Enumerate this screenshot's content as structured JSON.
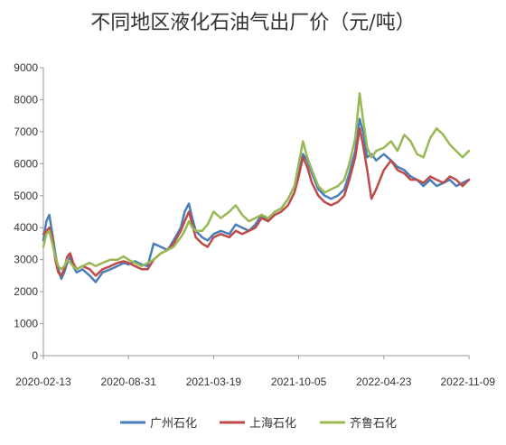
{
  "chart_data": {
    "type": "line",
    "title": "不同地区液化石油气出厂价（元/吨）",
    "xlabel": "",
    "ylabel": "",
    "x_range": [
      "2020-02-13",
      "2022-11-09"
    ],
    "x_ticks": [
      "2020-02-13",
      "2020-08-31",
      "2021-03-19",
      "2021-10-05",
      "2022-04-23",
      "2022-11-09"
    ],
    "ylim": [
      0,
      9000
    ],
    "y_ticks": [
      0,
      1000,
      2000,
      3000,
      4000,
      5000,
      6000,
      7000,
      8000,
      9000
    ],
    "grid": false,
    "legend_position": "bottom",
    "series": [
      {
        "name": "广州石化",
        "color": "#4a7ebb",
        "points": [
          [
            "2020-02-13",
            3600
          ],
          [
            "2020-02-20",
            4200
          ],
          [
            "2020-02-27",
            4400
          ],
          [
            "2020-03-05",
            3800
          ],
          [
            "2020-03-12",
            3200
          ],
          [
            "2020-03-19",
            2700
          ],
          [
            "2020-03-26",
            2400
          ],
          [
            "2020-04-02",
            2600
          ],
          [
            "2020-04-09",
            2900
          ],
          [
            "2020-04-16",
            3100
          ],
          [
            "2020-04-23",
            2800
          ],
          [
            "2020-05-01",
            2600
          ],
          [
            "2020-05-15",
            2700
          ],
          [
            "2020-06-01",
            2500
          ],
          [
            "2020-06-15",
            2300
          ],
          [
            "2020-07-01",
            2600
          ],
          [
            "2020-07-20",
            2700
          ],
          [
            "2020-08-05",
            2800
          ],
          [
            "2020-08-20",
            2900
          ],
          [
            "2020-08-31",
            2850
          ],
          [
            "2020-09-15",
            2950
          ],
          [
            "2020-10-01",
            2850
          ],
          [
            "2020-10-15",
            2800
          ],
          [
            "2020-10-29",
            3500
          ],
          [
            "2020-11-15",
            3400
          ],
          [
            "2020-12-01",
            3300
          ],
          [
            "2020-12-15",
            3600
          ],
          [
            "2021-01-01",
            4000
          ],
          [
            "2021-01-10",
            4500
          ],
          [
            "2021-01-20",
            4750
          ],
          [
            "2021-01-28",
            4300
          ],
          [
            "2021-02-05",
            3900
          ],
          [
            "2021-02-20",
            3700
          ],
          [
            "2021-03-05",
            3600
          ],
          [
            "2021-03-19",
            3800
          ],
          [
            "2021-04-05",
            3900
          ],
          [
            "2021-04-25",
            3800
          ],
          [
            "2021-05-10",
            4100
          ],
          [
            "2021-05-25",
            4000
          ],
          [
            "2021-06-10",
            3900
          ],
          [
            "2021-06-25",
            4100
          ],
          [
            "2021-07-10",
            4400
          ],
          [
            "2021-07-25",
            4200
          ],
          [
            "2021-08-10",
            4500
          ],
          [
            "2021-08-25",
            4600
          ],
          [
            "2021-09-10",
            4900
          ],
          [
            "2021-09-25",
            5300
          ],
          [
            "2021-10-05",
            5700
          ],
          [
            "2021-10-15",
            6300
          ],
          [
            "2021-10-25",
            6100
          ],
          [
            "2021-11-05",
            5700
          ],
          [
            "2021-11-20",
            5200
          ],
          [
            "2021-12-05",
            5000
          ],
          [
            "2021-12-20",
            4900
          ],
          [
            "2022-01-05",
            5000
          ],
          [
            "2022-01-20",
            5200
          ],
          [
            "2022-02-01",
            5700
          ],
          [
            "2022-02-15",
            6400
          ],
          [
            "2022-02-25",
            7400
          ],
          [
            "2022-03-05",
            7000
          ],
          [
            "2022-03-15",
            6200
          ],
          [
            "2022-03-25",
            6300
          ],
          [
            "2022-04-05",
            6100
          ],
          [
            "2022-04-23",
            6300
          ],
          [
            "2022-05-10",
            6100
          ],
          [
            "2022-05-25",
            5900
          ],
          [
            "2022-06-10",
            5800
          ],
          [
            "2022-06-25",
            5600
          ],
          [
            "2022-07-10",
            5500
          ],
          [
            "2022-07-25",
            5300
          ],
          [
            "2022-08-10",
            5500
          ],
          [
            "2022-08-25",
            5300
          ],
          [
            "2022-09-10",
            5400
          ],
          [
            "2022-09-25",
            5500
          ],
          [
            "2022-10-10",
            5300
          ],
          [
            "2022-10-25",
            5400
          ],
          [
            "2022-11-09",
            5500
          ]
        ]
      },
      {
        "name": "上海石化",
        "color": "#be4b48",
        "points": [
          [
            "2020-02-13",
            3800
          ],
          [
            "2020-02-20",
            3900
          ],
          [
            "2020-02-27",
            4000
          ],
          [
            "2020-03-05",
            3700
          ],
          [
            "2020-03-12",
            3000
          ],
          [
            "2020-03-19",
            2600
          ],
          [
            "2020-03-26",
            2500
          ],
          [
            "2020-04-02",
            2700
          ],
          [
            "2020-04-09",
            3100
          ],
          [
            "2020-04-16",
            3200
          ],
          [
            "2020-04-23",
            2900
          ],
          [
            "2020-05-01",
            2700
          ],
          [
            "2020-05-15",
            2800
          ],
          [
            "2020-06-01",
            2700
          ],
          [
            "2020-06-15",
            2500
          ],
          [
            "2020-07-01",
            2700
          ],
          [
            "2020-07-20",
            2800
          ],
          [
            "2020-08-05",
            2900
          ],
          [
            "2020-08-20",
            2950
          ],
          [
            "2020-08-31",
            2900
          ],
          [
            "2020-09-15",
            2800
          ],
          [
            "2020-10-01",
            2700
          ],
          [
            "2020-10-15",
            2700
          ],
          [
            "2020-10-29",
            3000
          ],
          [
            "2020-11-15",
            3200
          ],
          [
            "2020-12-01",
            3300
          ],
          [
            "2020-12-15",
            3500
          ],
          [
            "2021-01-01",
            3900
          ],
          [
            "2021-01-10",
            4200
          ],
          [
            "2021-01-20",
            4500
          ],
          [
            "2021-01-28",
            4100
          ],
          [
            "2021-02-05",
            3700
          ],
          [
            "2021-02-20",
            3500
          ],
          [
            "2021-03-05",
            3400
          ],
          [
            "2021-03-19",
            3700
          ],
          [
            "2021-04-05",
            3800
          ],
          [
            "2021-04-25",
            3700
          ],
          [
            "2021-05-10",
            3900
          ],
          [
            "2021-05-25",
            3800
          ],
          [
            "2021-06-10",
            3900
          ],
          [
            "2021-06-25",
            4000
          ],
          [
            "2021-07-10",
            4300
          ],
          [
            "2021-07-25",
            4200
          ],
          [
            "2021-08-10",
            4400
          ],
          [
            "2021-08-25",
            4500
          ],
          [
            "2021-09-10",
            4700
          ],
          [
            "2021-09-25",
            5100
          ],
          [
            "2021-10-05",
            5600
          ],
          [
            "2021-10-15",
            6200
          ],
          [
            "2021-10-25",
            5900
          ],
          [
            "2021-11-05",
            5400
          ],
          [
            "2021-11-20",
            5000
          ],
          [
            "2021-12-05",
            4800
          ],
          [
            "2021-12-20",
            4700
          ],
          [
            "2022-01-05",
            4800
          ],
          [
            "2022-01-20",
            5000
          ],
          [
            "2022-02-01",
            5500
          ],
          [
            "2022-02-15",
            6200
          ],
          [
            "2022-02-25",
            7100
          ],
          [
            "2022-03-05",
            6600
          ],
          [
            "2022-03-15",
            5800
          ],
          [
            "2022-03-25",
            4900
          ],
          [
            "2022-04-05",
            5200
          ],
          [
            "2022-04-23",
            5800
          ],
          [
            "2022-05-10",
            6100
          ],
          [
            "2022-05-25",
            5800
          ],
          [
            "2022-06-10",
            5700
          ],
          [
            "2022-06-25",
            5500
          ],
          [
            "2022-07-10",
            5500
          ],
          [
            "2022-07-25",
            5400
          ],
          [
            "2022-08-10",
            5600
          ],
          [
            "2022-08-25",
            5500
          ],
          [
            "2022-09-10",
            5400
          ],
          [
            "2022-09-25",
            5600
          ],
          [
            "2022-10-10",
            5500
          ],
          [
            "2022-10-25",
            5300
          ],
          [
            "2022-11-09",
            5500
          ]
        ]
      },
      {
        "name": "齐鲁石化",
        "color": "#98b954",
        "points": [
          [
            "2020-02-13",
            3400
          ],
          [
            "2020-02-20",
            3800
          ],
          [
            "2020-02-27",
            3900
          ],
          [
            "2020-03-05",
            3500
          ],
          [
            "2020-03-12",
            3100
          ],
          [
            "2020-03-19",
            2800
          ],
          [
            "2020-03-26",
            2700
          ],
          [
            "2020-04-02",
            2800
          ],
          [
            "2020-04-09",
            3000
          ],
          [
            "2020-04-16",
            2900
          ],
          [
            "2020-04-23",
            2800
          ],
          [
            "2020-05-01",
            2700
          ],
          [
            "2020-05-15",
            2800
          ],
          [
            "2020-06-01",
            2900
          ],
          [
            "2020-06-15",
            2800
          ],
          [
            "2020-07-01",
            2900
          ],
          [
            "2020-07-20",
            3000
          ],
          [
            "2020-08-05",
            3000
          ],
          [
            "2020-08-20",
            3100
          ],
          [
            "2020-08-31",
            3000
          ],
          [
            "2020-09-15",
            2900
          ],
          [
            "2020-10-01",
            2800
          ],
          [
            "2020-10-15",
            2900
          ],
          [
            "2020-10-29",
            3000
          ],
          [
            "2020-11-15",
            3200
          ],
          [
            "2020-12-01",
            3300
          ],
          [
            "2020-12-15",
            3400
          ],
          [
            "2021-01-01",
            3700
          ],
          [
            "2021-01-10",
            3900
          ],
          [
            "2021-01-20",
            4200
          ],
          [
            "2021-01-28",
            4000
          ],
          [
            "2021-02-05",
            3900
          ],
          [
            "2021-02-20",
            3900
          ],
          [
            "2021-03-05",
            4100
          ],
          [
            "2021-03-19",
            4500
          ],
          [
            "2021-04-05",
            4300
          ],
          [
            "2021-04-25",
            4500
          ],
          [
            "2021-05-10",
            4700
          ],
          [
            "2021-05-25",
            4400
          ],
          [
            "2021-06-10",
            4200
          ],
          [
            "2021-06-25",
            4300
          ],
          [
            "2021-07-10",
            4400
          ],
          [
            "2021-07-25",
            4300
          ],
          [
            "2021-08-10",
            4500
          ],
          [
            "2021-08-25",
            4600
          ],
          [
            "2021-09-10",
            4900
          ],
          [
            "2021-09-25",
            5300
          ],
          [
            "2021-10-05",
            6000
          ],
          [
            "2021-10-15",
            6700
          ],
          [
            "2021-10-25",
            6200
          ],
          [
            "2021-11-05",
            5800
          ],
          [
            "2021-11-20",
            5300
          ],
          [
            "2021-12-05",
            5100
          ],
          [
            "2021-12-20",
            5200
          ],
          [
            "2022-01-05",
            5300
          ],
          [
            "2022-01-20",
            5500
          ],
          [
            "2022-02-01",
            6000
          ],
          [
            "2022-02-15",
            6800
          ],
          [
            "2022-02-25",
            8200
          ],
          [
            "2022-03-05",
            7400
          ],
          [
            "2022-03-15",
            6500
          ],
          [
            "2022-03-25",
            6200
          ],
          [
            "2022-04-05",
            6400
          ],
          [
            "2022-04-23",
            6500
          ],
          [
            "2022-05-10",
            6700
          ],
          [
            "2022-05-25",
            6400
          ],
          [
            "2022-06-10",
            6900
          ],
          [
            "2022-06-25",
            6700
          ],
          [
            "2022-07-10",
            6300
          ],
          [
            "2022-07-25",
            6200
          ],
          [
            "2022-08-10",
            6800
          ],
          [
            "2022-08-25",
            7100
          ],
          [
            "2022-09-10",
            6900
          ],
          [
            "2022-09-25",
            6600
          ],
          [
            "2022-10-10",
            6400
          ],
          [
            "2022-10-25",
            6200
          ],
          [
            "2022-11-09",
            6400
          ]
        ]
      }
    ]
  }
}
